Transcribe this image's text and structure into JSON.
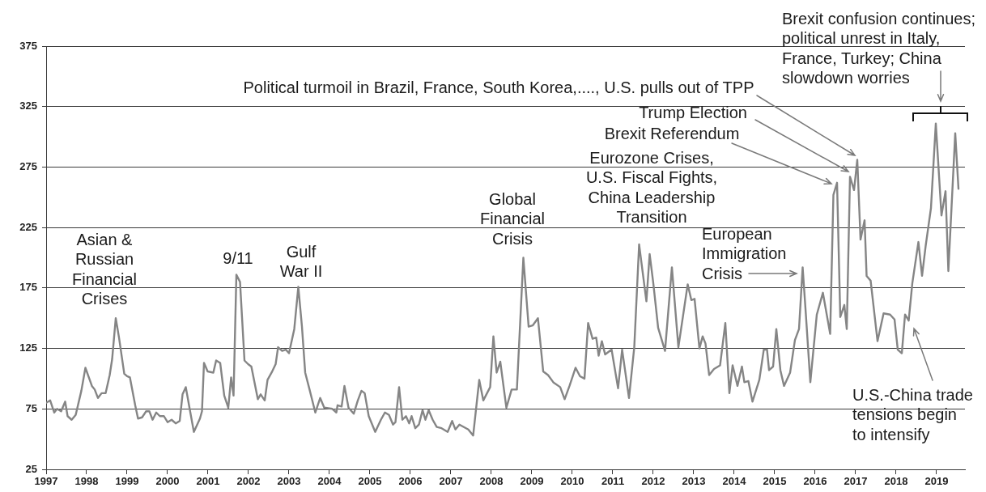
{
  "chart_data": {
    "type": "line",
    "x": [
      1997.0,
      1997.1,
      1997.2,
      1997.27,
      1997.37,
      1997.47,
      1997.53,
      1997.63,
      1997.73,
      1997.87,
      1997.97,
      1998.13,
      1998.2,
      1998.28,
      1998.37,
      1998.47,
      1998.57,
      1998.63,
      1998.72,
      1998.8,
      1998.93,
      1999.0,
      1999.07,
      1999.2,
      1999.27,
      1999.37,
      1999.47,
      1999.55,
      1999.63,
      1999.72,
      1999.81,
      1999.91,
      2000.0,
      2000.1,
      2000.2,
      2000.3,
      2000.37,
      2000.45,
      2000.53,
      2000.65,
      2000.8,
      2000.85,
      2000.9,
      2000.99,
      2001.13,
      2001.2,
      2001.3,
      2001.4,
      2001.5,
      2001.57,
      2001.63,
      2001.7,
      2001.79,
      2001.9,
      2001.99,
      2002.07,
      2002.23,
      2002.3,
      2002.4,
      2002.47,
      2002.57,
      2002.67,
      2002.73,
      2002.83,
      2002.92,
      2003.0,
      2003.13,
      2003.23,
      2003.32,
      2003.4,
      2003.5,
      2003.59,
      2003.65,
      2003.77,
      2003.87,
      2004.07,
      2004.17,
      2004.2,
      2004.3,
      2004.37,
      2004.47,
      2004.6,
      2004.7,
      2004.79,
      2004.87,
      2004.97,
      2005.13,
      2005.27,
      2005.37,
      2005.47,
      2005.57,
      2005.63,
      2005.72,
      2005.8,
      2005.89,
      2005.97,
      2006.03,
      2006.12,
      2006.21,
      2006.3,
      2006.37,
      2006.45,
      2006.55,
      2006.65,
      2006.77,
      2006.92,
      2007.03,
      2007.11,
      2007.21,
      2007.32,
      2007.43,
      2007.55,
      2007.7,
      2007.8,
      2007.97,
      2008.05,
      2008.13,
      2008.22,
      2008.37,
      2008.5,
      2008.63,
      2008.79,
      2008.92,
      2009.02,
      2009.15,
      2009.28,
      2009.4,
      2009.53,
      2009.7,
      2009.81,
      2009.93,
      2010.08,
      2010.19,
      2010.3,
      2010.39,
      2010.5,
      2010.59,
      2010.65,
      2010.73,
      2010.81,
      2010.97,
      2011.13,
      2011.23,
      2011.4,
      2011.53,
      2011.65,
      2011.83,
      2011.91,
      2012.0,
      2012.12,
      2012.29,
      2012.46,
      2012.62,
      2012.85,
      2012.94,
      2013.02,
      2013.14,
      2013.22,
      2013.29,
      2013.38,
      2013.5,
      2013.65,
      2013.78,
      2013.88,
      2013.96,
      2014.08,
      2014.19,
      2014.25,
      2014.35,
      2014.45,
      2014.62,
      2014.73,
      2014.81,
      2014.86,
      2014.96,
      2015.04,
      2015.14,
      2015.23,
      2015.38,
      2015.5,
      2015.6,
      2015.69,
      2015.77,
      2015.88,
      2016.04,
      2016.19,
      2016.37,
      2016.45,
      2016.54,
      2016.62,
      2016.72,
      2016.78,
      2016.86,
      2016.96,
      2017.04,
      2017.12,
      2017.22,
      2017.27,
      2017.37,
      2017.54,
      2017.69,
      2017.85,
      2017.96,
      2018.04,
      2018.14,
      2018.22,
      2018.31,
      2018.4,
      2018.55,
      2018.64,
      2018.73,
      2018.86,
      2018.98,
      2019.12,
      2019.22,
      2019.29,
      2019.46,
      2019.54
    ],
    "series": [
      {
        "color": "#858585",
        "values": [
          80,
          82,
          72,
          75,
          73,
          81,
          69,
          66,
          70,
          90,
          109,
          94,
          91,
          84,
          88,
          88,
          103,
          116,
          150,
          134,
          104,
          102,
          101,
          78,
          67,
          68,
          73,
          73,
          66,
          72,
          69,
          69,
          64,
          66,
          63,
          65,
          87,
          93,
          78,
          56,
          67,
          73,
          113,
          106,
          105,
          115,
          113,
          86,
          76,
          101,
          86,
          186,
          180,
          115,
          112,
          110,
          83,
          87,
          82,
          99,
          105,
          112,
          126,
          123,
          124,
          121,
          141,
          176,
          143,
          105,
          92,
          80,
          72,
          84,
          76,
          75,
          72,
          78,
          77,
          94,
          76,
          71,
          82,
          90,
          88,
          69,
          56,
          66,
          72,
          70,
          62,
          64,
          93,
          66,
          69,
          63,
          69,
          59,
          62,
          74,
          66,
          74,
          66,
          60,
          59,
          56,
          65,
          58,
          62,
          60,
          58,
          53,
          99,
          82,
          93,
          135,
          105,
          114,
          76,
          91,
          91,
          200,
          143,
          144,
          150,
          106,
          103,
          97,
          93,
          83,
          94,
          109,
          102,
          100,
          146,
          133,
          134,
          119,
          131,
          120,
          124,
          92,
          124,
          84,
          126,
          211,
          164,
          203,
          179,
          142,
          123,
          192,
          126,
          178,
          165,
          166,
          125,
          135,
          129,
          103,
          108,
          111,
          146,
          88,
          111,
          94,
          110,
          97,
          98,
          81,
          99,
          124,
          124,
          107,
          110,
          141,
          107,
          94,
          105,
          132,
          141,
          192,
          153,
          97,
          153,
          171,
          137,
          252,
          262,
          151,
          161,
          141,
          267,
          256,
          281,
          215,
          231,
          185,
          181,
          131,
          154,
          153,
          149,
          124,
          121,
          153,
          148,
          179,
          213,
          185,
          210,
          241,
          311,
          235,
          255,
          189,
          303,
          257
        ]
      }
    ],
    "xlim": [
      1997,
      2019.7
    ],
    "xticks": [
      1997,
      1998,
      1999,
      2000,
      2001,
      2002,
      2003,
      2004,
      2005,
      2006,
      2007,
      2008,
      2009,
      2010,
      2011,
      2012,
      2013,
      2014,
      2015,
      2016,
      2017,
      2018,
      2019
    ],
    "ylim": [
      25,
      375
    ],
    "yticks": [
      25,
      75,
      125,
      175,
      225,
      275,
      325,
      375
    ],
    "grid": "y",
    "legend": false,
    "marker": "none",
    "line_style": "solid",
    "annotations": [
      "Asian &\nRussian\nFinancial\nCrises",
      "9/11",
      "Gulf\nWar II",
      "Global\nFinancial\nCrisis",
      "Eurozone Crises,\nU.S. Fiscal Fights,\nChina Leadership\nTransition",
      "European\nImmigration\nCrisis",
      "Brexit Referendum",
      "Trump Election",
      "Political turmoil in Brazil, France, South Korea,...., U.S. pulls out of TPP",
      "Brexit confusion continues;\npolitical unrest in Italy,\nFrance, Turkey; China\nslowdown worries",
      "U.S.-China trade\ntensions begin\nto intensify"
    ]
  }
}
